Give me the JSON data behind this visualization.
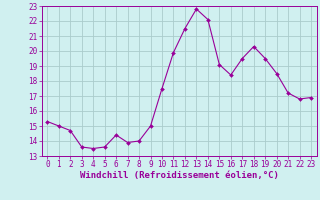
{
  "x": [
    0,
    1,
    2,
    3,
    4,
    5,
    6,
    7,
    8,
    9,
    10,
    11,
    12,
    13,
    14,
    15,
    16,
    17,
    18,
    19,
    20,
    21,
    22,
    23
  ],
  "y": [
    15.3,
    15.0,
    14.7,
    13.6,
    13.5,
    13.6,
    14.4,
    13.9,
    14.0,
    15.0,
    17.5,
    19.9,
    21.5,
    22.8,
    22.1,
    19.1,
    18.4,
    19.5,
    20.3,
    19.5,
    18.5,
    17.2,
    16.8,
    16.9
  ],
  "line_color": "#990099",
  "marker": "D",
  "marker_size": 2.0,
  "bg_color": "#d0f0f0",
  "grid_color": "#aacccc",
  "xlabel": "Windchill (Refroidissement éolien,°C)",
  "ylim": [
    13,
    23
  ],
  "xlim_min": -0.5,
  "xlim_max": 23.5,
  "yticks": [
    13,
    14,
    15,
    16,
    17,
    18,
    19,
    20,
    21,
    22,
    23
  ],
  "xticks": [
    0,
    1,
    2,
    3,
    4,
    5,
    6,
    7,
    8,
    9,
    10,
    11,
    12,
    13,
    14,
    15,
    16,
    17,
    18,
    19,
    20,
    21,
    22,
    23
  ],
  "tick_color": "#990099",
  "label_color": "#990099",
  "xlabel_fontsize": 6.5,
  "tick_fontsize": 5.5,
  "linewidth": 0.8
}
